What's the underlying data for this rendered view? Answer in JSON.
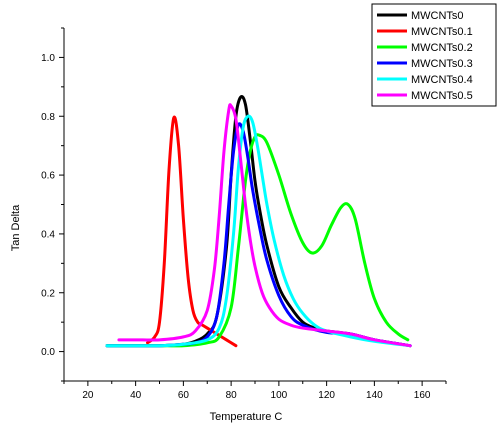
{
  "chart_data": {
    "type": "line",
    "title": "",
    "xlabel": "Temperature C",
    "ylabel": "Tan Delta",
    "xlim": [
      10,
      170
    ],
    "ylim": [
      -0.1,
      1.1
    ],
    "xticks": [
      20,
      40,
      60,
      80,
      100,
      120,
      140,
      160
    ],
    "yticks": [
      0.0,
      0.2,
      0.4,
      0.6,
      0.8,
      1.0
    ],
    "xtick_labels": [
      "20",
      "40",
      "60",
      "80",
      "100",
      "120",
      "140",
      "160"
    ],
    "ytick_labels": [
      "0.0",
      "0.2",
      "0.4",
      "0.6",
      "0.8",
      "1.0"
    ],
    "grid": false,
    "legend_position": "top-right",
    "series": [
      {
        "name": "MWCNTs0",
        "color": "#000000",
        "x": [
          28,
          40,
          50,
          60,
          65,
          70,
          74,
          78,
          80,
          82,
          84,
          86,
          88,
          90,
          92,
          95,
          100,
          105,
          110,
          115,
          120,
          130,
          140,
          155
        ],
        "y": [
          0.02,
          0.02,
          0.02,
          0.025,
          0.035,
          0.06,
          0.12,
          0.35,
          0.6,
          0.8,
          0.865,
          0.84,
          0.72,
          0.58,
          0.48,
          0.36,
          0.22,
          0.15,
          0.1,
          0.08,
          0.07,
          0.06,
          0.04,
          0.02
        ]
      },
      {
        "name": "MWCNTs0.1",
        "color": "#ff0000",
        "x": [
          45,
          48,
          50,
          52,
          54,
          56,
          58,
          60,
          62,
          64,
          66,
          68,
          70,
          74,
          78,
          82
        ],
        "y": [
          0.03,
          0.05,
          0.1,
          0.3,
          0.62,
          0.795,
          0.7,
          0.45,
          0.25,
          0.14,
          0.1,
          0.09,
          0.08,
          0.06,
          0.04,
          0.02
        ]
      },
      {
        "name": "MWCNTs0.2",
        "color": "#00ff00",
        "x": [
          28,
          40,
          50,
          60,
          70,
          75,
          80,
          83,
          86,
          88,
          90,
          92,
          95,
          100,
          105,
          110,
          114,
          118,
          122,
          126,
          129,
          132,
          136,
          140,
          145,
          150,
          154
        ],
        "y": [
          0.02,
          0.02,
          0.02,
          0.02,
          0.03,
          0.05,
          0.15,
          0.35,
          0.58,
          0.68,
          0.73,
          0.735,
          0.71,
          0.6,
          0.47,
          0.37,
          0.335,
          0.36,
          0.43,
          0.49,
          0.5,
          0.45,
          0.3,
          0.18,
          0.1,
          0.06,
          0.04
        ]
      },
      {
        "name": "MWCNTs0.3",
        "color": "#0000ff",
        "x": [
          28,
          40,
          50,
          60,
          65,
          70,
          74,
          77,
          79,
          81,
          83,
          85,
          87,
          89,
          92,
          95,
          100,
          105,
          110,
          120,
          130,
          140,
          155
        ],
        "y": [
          0.02,
          0.02,
          0.02,
          0.025,
          0.03,
          0.05,
          0.12,
          0.3,
          0.5,
          0.68,
          0.77,
          0.75,
          0.66,
          0.55,
          0.42,
          0.31,
          0.19,
          0.12,
          0.09,
          0.065,
          0.06,
          0.04,
          0.02
        ]
      },
      {
        "name": "MWCNTs0.4",
        "color": "#00ffff",
        "x": [
          28,
          40,
          50,
          60,
          70,
          75,
          78,
          81,
          83,
          85,
          87,
          89,
          91,
          93,
          95,
          98,
          102,
          106,
          110,
          115,
          120,
          130,
          140,
          155
        ],
        "y": [
          0.02,
          0.02,
          0.02,
          0.025,
          0.04,
          0.08,
          0.18,
          0.4,
          0.62,
          0.76,
          0.8,
          0.78,
          0.7,
          0.6,
          0.5,
          0.38,
          0.26,
          0.18,
          0.13,
          0.09,
          0.07,
          0.05,
          0.035,
          0.02
        ]
      },
      {
        "name": "MWCNTs0.5",
        "color": "#ff00ff",
        "x": [
          33,
          40,
          50,
          60,
          65,
          70,
          73,
          75,
          77,
          79,
          80,
          82,
          84,
          86,
          88,
          90,
          93,
          96,
          100,
          105,
          110,
          120,
          130,
          140,
          155
        ],
        "y": [
          0.04,
          0.04,
          0.04,
          0.05,
          0.07,
          0.14,
          0.28,
          0.46,
          0.68,
          0.82,
          0.835,
          0.79,
          0.65,
          0.5,
          0.38,
          0.29,
          0.2,
          0.15,
          0.11,
          0.09,
          0.08,
          0.07,
          0.06,
          0.04,
          0.02
        ]
      }
    ]
  }
}
